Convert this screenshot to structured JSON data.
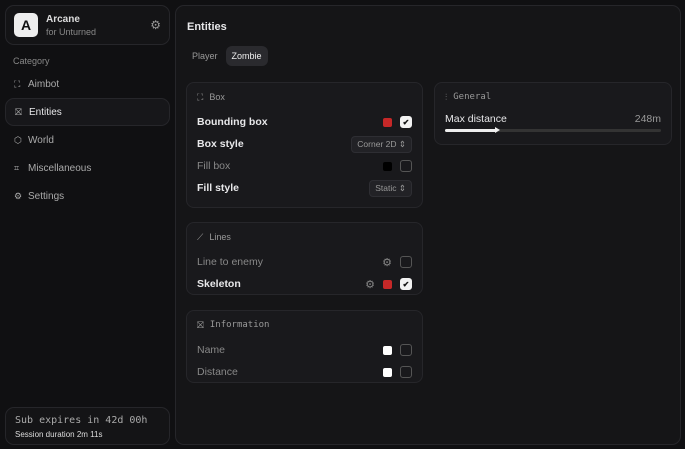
{
  "brand": {
    "logo": "A",
    "name": "Arcane",
    "subtitle": "for Unturned",
    "settings_icon": "gear-icon"
  },
  "sidebar": {
    "category_label": "Category",
    "items": [
      {
        "label": "Aimbot",
        "icon": "crosshair-icon",
        "active": false
      },
      {
        "label": "Entities",
        "icon": "scan-icon",
        "active": true
      },
      {
        "label": "World",
        "icon": "cube-icon",
        "active": false
      },
      {
        "label": "Miscellaneous",
        "icon": "grid-icon",
        "active": false
      },
      {
        "label": "Settings",
        "icon": "gear-icon",
        "active": false
      }
    ]
  },
  "footer": {
    "sub": "Sub expires in 42d 00h",
    "session": "Session duration 2m 11s"
  },
  "main": {
    "title": "Entities",
    "tabs": [
      {
        "label": "Player",
        "active": false
      },
      {
        "label": "Zombie",
        "active": true
      }
    ]
  },
  "box": {
    "title": "Box",
    "bounding_box": {
      "label": "Bounding box",
      "color": "#c62828",
      "checked": true
    },
    "box_style": {
      "label": "Box style",
      "value": "Corner 2D"
    },
    "fill_box": {
      "label": "Fill box",
      "color": "#000000",
      "checked": false
    },
    "fill_style": {
      "label": "Fill style",
      "value": "Static"
    }
  },
  "lines": {
    "title": "Lines",
    "line_to_enemy": {
      "label": "Line to enemy",
      "checked": false
    },
    "skeleton": {
      "label": "Skeleton",
      "color": "#c62828",
      "checked": true
    }
  },
  "information": {
    "title": "Information",
    "name": {
      "label": "Name",
      "color": "#ffffff",
      "checked": false
    },
    "distance": {
      "label": "Distance",
      "color": "#ffffff",
      "checked": false
    }
  },
  "general": {
    "title": "General",
    "max_distance": {
      "label": "Max distance",
      "value": "248m",
      "fraction": 0.24
    }
  }
}
